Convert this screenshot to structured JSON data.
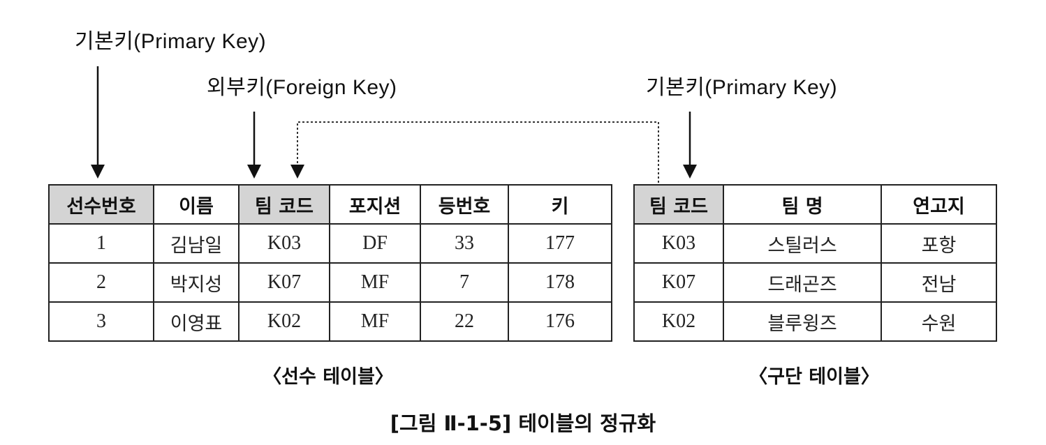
{
  "labels": {
    "pk_left": "기본키(Primary Key)",
    "fk": "외부키(Foreign Key)",
    "pk_right": "기본키(Primary Key)"
  },
  "player_table": {
    "caption": "〈선수 테이블〉",
    "headers": [
      "선수번호",
      "이름",
      "팀 코드",
      "포지션",
      "등번호",
      "키"
    ],
    "rows": [
      [
        "1",
        "김남일",
        "K03",
        "DF",
        "33",
        "177"
      ],
      [
        "2",
        "박지성",
        "K07",
        "MF",
        "7",
        "178"
      ],
      [
        "3",
        "이영표",
        "K02",
        "MF",
        "22",
        "176"
      ]
    ]
  },
  "team_table": {
    "caption": "〈구단 테이블〉",
    "headers": [
      "팀 코드",
      "팀 명",
      "연고지"
    ],
    "rows": [
      [
        "K03",
        "스틸러스",
        "포항"
      ],
      [
        "K07",
        "드래곤즈",
        "전남"
      ],
      [
        "K02",
        "블루윙즈",
        "수원"
      ]
    ]
  },
  "figure_caption": "[그림 Ⅱ-1-5] 테이블의 정규화"
}
